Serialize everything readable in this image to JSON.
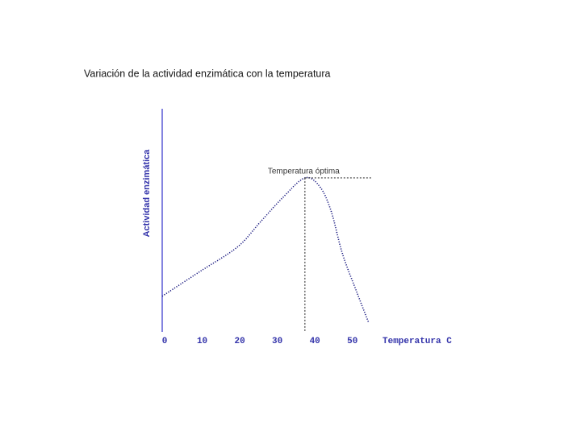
{
  "chart_data": {
    "type": "line",
    "title": "Variación de la actividad enzimática con la temperatura",
    "x_label": "Temperatura C",
    "y_label": "Actividad enzimática",
    "annotation": "Temperatura óptima",
    "x": [
      0,
      10,
      20,
      26,
      32,
      38,
      42,
      45,
      48,
      52,
      55
    ],
    "series": [
      {
        "color": "#1a1a80",
        "values": [
          16,
          27,
          38,
          49,
          60,
          69,
          65,
          54,
          35,
          17,
          4
        ]
      }
    ],
    "peak_index": 5,
    "xlim": [
      0,
      55
    ],
    "ylim": [
      0,
      100
    ],
    "xticks": [
      0,
      10,
      20,
      30,
      40,
      50
    ],
    "axis_color": "#3333cc",
    "tick_color": "#3333aa"
  }
}
